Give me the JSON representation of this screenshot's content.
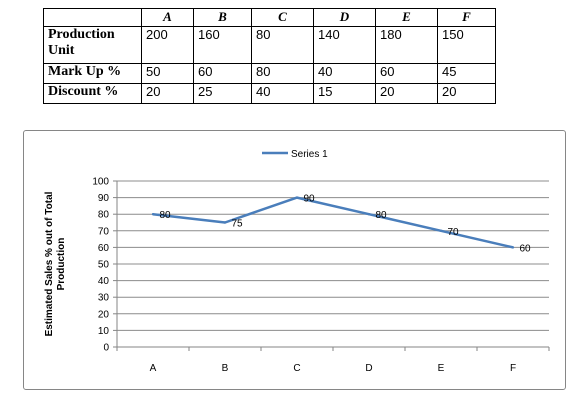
{
  "table": {
    "headers": [
      "",
      "A",
      "B",
      "C",
      "D",
      "E",
      "F"
    ],
    "rows": [
      {
        "label": "Production Unit",
        "values": [
          "200",
          "160",
          "80",
          "140",
          "180",
          "150"
        ]
      },
      {
        "label": "Mark Up %",
        "values": [
          "50",
          "60",
          "80",
          "40",
          "60",
          "45"
        ]
      },
      {
        "label": "Discount %",
        "values": [
          "20",
          "25",
          "40",
          "15",
          "20",
          "20"
        ]
      }
    ]
  },
  "chart_data": {
    "type": "line",
    "categories": [
      "A",
      "B",
      "C",
      "D",
      "E",
      "F"
    ],
    "series": [
      {
        "name": "Series 1",
        "values": [
          80,
          75,
          90,
          80,
          70,
          60
        ],
        "color": "#4a7ebb"
      }
    ],
    "xlabel": "",
    "ylabel": "Estimated Sales % out of Total Production",
    "ylim": [
      0,
      100
    ],
    "yticks": [
      0,
      10,
      20,
      30,
      40,
      50,
      60,
      70,
      80,
      90,
      100
    ],
    "data_labels": [
      "80",
      "75",
      "90",
      "80",
      "70",
      "60"
    ],
    "grid": true,
    "legend": "top"
  }
}
